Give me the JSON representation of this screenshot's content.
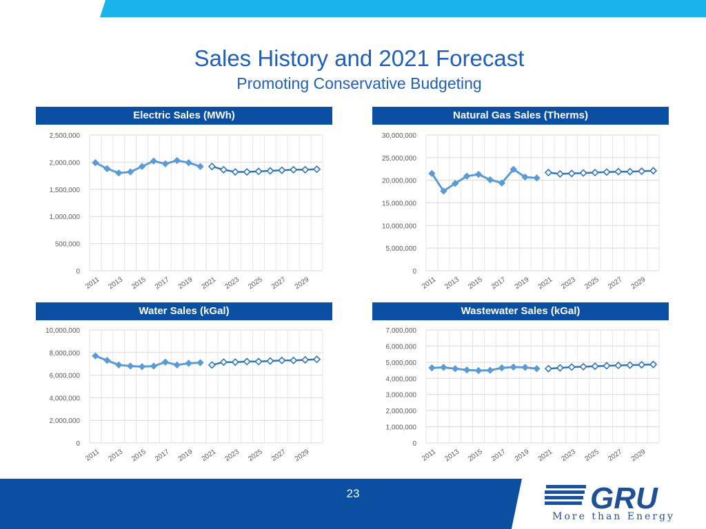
{
  "header": {
    "title": "Sales History and 2021 Forecast",
    "subtitle": "Promoting Conservative Budgeting"
  },
  "footer": {
    "page_number": "23",
    "logo_text": "GRU",
    "logo_tagline": "More than Energy"
  },
  "colors": {
    "brand_blue": "#0b4fa3",
    "top_band": "#1ab5ea",
    "history_series": "#5b9bd5",
    "forecast_series": "#2e75b6"
  },
  "chart_data": [
    {
      "type": "line",
      "title": "Electric Sales (MWh)",
      "x": [
        "2011",
        "2012",
        "2013",
        "2014",
        "2015",
        "2016",
        "2017",
        "2018",
        "2019",
        "2020",
        "2021",
        "2022",
        "2023",
        "2024",
        "2025",
        "2026",
        "2027",
        "2028",
        "2029",
        "2030"
      ],
      "tick_labels": [
        "2011",
        "2013",
        "2015",
        "2017",
        "2019",
        "2021",
        "2023",
        "2025",
        "2027",
        "2029"
      ],
      "ylim": [
        0,
        2500000
      ],
      "yticks": [
        0,
        500000,
        1000000,
        1500000,
        2000000,
        2500000
      ],
      "ytick_labels": [
        "0",
        "500,000",
        "1,000,000",
        "1,500,000",
        "2,000,000",
        "2,500,000"
      ],
      "grid": true,
      "legend": "none",
      "series": [
        {
          "style": "history",
          "x": [
            "2011",
            "2012",
            "2013",
            "2014",
            "2015",
            "2016",
            "2017",
            "2018",
            "2019",
            "2020"
          ],
          "values": [
            1990000,
            1880000,
            1800000,
            1820000,
            1920000,
            2020000,
            1970000,
            2030000,
            1990000,
            1920000
          ]
        },
        {
          "style": "forecast",
          "x": [
            "2021",
            "2022",
            "2023",
            "2024",
            "2025",
            "2026",
            "2027",
            "2028",
            "2029",
            "2030"
          ],
          "values": [
            1920000,
            1860000,
            1820000,
            1820000,
            1830000,
            1840000,
            1850000,
            1860000,
            1860000,
            1870000
          ]
        }
      ]
    },
    {
      "type": "line",
      "title": "Natural Gas Sales (Therms)",
      "x": [
        "2011",
        "2012",
        "2013",
        "2014",
        "2015",
        "2016",
        "2017",
        "2018",
        "2019",
        "2020",
        "2021",
        "2022",
        "2023",
        "2024",
        "2025",
        "2026",
        "2027",
        "2028",
        "2029",
        "2030"
      ],
      "tick_labels": [
        "2011",
        "2013",
        "2015",
        "2017",
        "2019",
        "2021",
        "2023",
        "2025",
        "2027",
        "2029"
      ],
      "ylim": [
        0,
        30000000
      ],
      "yticks": [
        0,
        5000000,
        10000000,
        15000000,
        20000000,
        25000000,
        30000000
      ],
      "ytick_labels": [
        "0",
        "5,000,000",
        "10,000,000",
        "15,000,000",
        "20,000,000",
        "25,000,000",
        "30,000,000"
      ],
      "grid": true,
      "legend": "none",
      "series": [
        {
          "style": "history",
          "x": [
            "2011",
            "2012",
            "2013",
            "2014",
            "2015",
            "2016",
            "2017",
            "2018",
            "2019",
            "2020"
          ],
          "values": [
            21500000,
            17600000,
            19300000,
            20900000,
            21300000,
            20100000,
            19400000,
            22400000,
            20700000,
            20500000
          ]
        },
        {
          "style": "forecast",
          "x": [
            "2021",
            "2022",
            "2023",
            "2024",
            "2025",
            "2026",
            "2027",
            "2028",
            "2029",
            "2030"
          ],
          "values": [
            21700000,
            21400000,
            21500000,
            21600000,
            21700000,
            21800000,
            21900000,
            21900000,
            22000000,
            22100000
          ]
        }
      ]
    },
    {
      "type": "line",
      "title": "Water Sales (kGal)",
      "x": [
        "2011",
        "2012",
        "2013",
        "2014",
        "2015",
        "2016",
        "2017",
        "2018",
        "2019",
        "2020",
        "2021",
        "2022",
        "2023",
        "2024",
        "2025",
        "2026",
        "2027",
        "2028",
        "2029",
        "2030"
      ],
      "tick_labels": [
        "2011",
        "2013",
        "2015",
        "2017",
        "2019",
        "2021",
        "2023",
        "2025",
        "2027",
        "2029"
      ],
      "ylim": [
        0,
        10000000
      ],
      "yticks": [
        0,
        2000000,
        4000000,
        6000000,
        8000000,
        10000000
      ],
      "ytick_labels": [
        "0",
        "2,000,000",
        "4,000,000",
        "6,000,000",
        "8,000,000",
        "10,000,000"
      ],
      "grid": true,
      "legend": "none",
      "series": [
        {
          "style": "history",
          "x": [
            "2011",
            "2012",
            "2013",
            "2014",
            "2015",
            "2016",
            "2017",
            "2018",
            "2019",
            "2020"
          ],
          "values": [
            7700000,
            7300000,
            6900000,
            6800000,
            6750000,
            6800000,
            7150000,
            6900000,
            7050000,
            7100000
          ]
        },
        {
          "style": "forecast",
          "x": [
            "2021",
            "2022",
            "2023",
            "2024",
            "2025",
            "2026",
            "2027",
            "2028",
            "2029",
            "2030"
          ],
          "values": [
            6900000,
            7150000,
            7150000,
            7200000,
            7200000,
            7250000,
            7300000,
            7300000,
            7350000,
            7400000
          ]
        }
      ]
    },
    {
      "type": "line",
      "title": "Wastewater Sales (kGal)",
      "x": [
        "2011",
        "2012",
        "2013",
        "2014",
        "2015",
        "2016",
        "2017",
        "2018",
        "2019",
        "2020",
        "2021",
        "2022",
        "2023",
        "2024",
        "2025",
        "2026",
        "2027",
        "2028",
        "2029",
        "2030"
      ],
      "tick_labels": [
        "2011",
        "2013",
        "2015",
        "2017",
        "2019",
        "2021",
        "2023",
        "2025",
        "2027",
        "2029"
      ],
      "ylim": [
        0,
        7000000
      ],
      "yticks": [
        0,
        1000000,
        2000000,
        3000000,
        4000000,
        5000000,
        6000000,
        7000000
      ],
      "ytick_labels": [
        "0",
        "1,000,000",
        "2,000,000",
        "3,000,000",
        "4,000,000",
        "5,000,000",
        "6,000,000",
        "7,000,000"
      ],
      "grid": true,
      "legend": "none",
      "series": [
        {
          "style": "history",
          "x": [
            "2011",
            "2012",
            "2013",
            "2014",
            "2015",
            "2016",
            "2017",
            "2018",
            "2019",
            "2020"
          ],
          "values": [
            4650000,
            4680000,
            4600000,
            4520000,
            4480000,
            4500000,
            4650000,
            4700000,
            4680000,
            4600000
          ]
        },
        {
          "style": "forecast",
          "x": [
            "2021",
            "2022",
            "2023",
            "2024",
            "2025",
            "2026",
            "2027",
            "2028",
            "2029",
            "2030"
          ],
          "values": [
            4600000,
            4650000,
            4700000,
            4720000,
            4750000,
            4780000,
            4800000,
            4820000,
            4840000,
            4860000
          ]
        }
      ]
    }
  ]
}
